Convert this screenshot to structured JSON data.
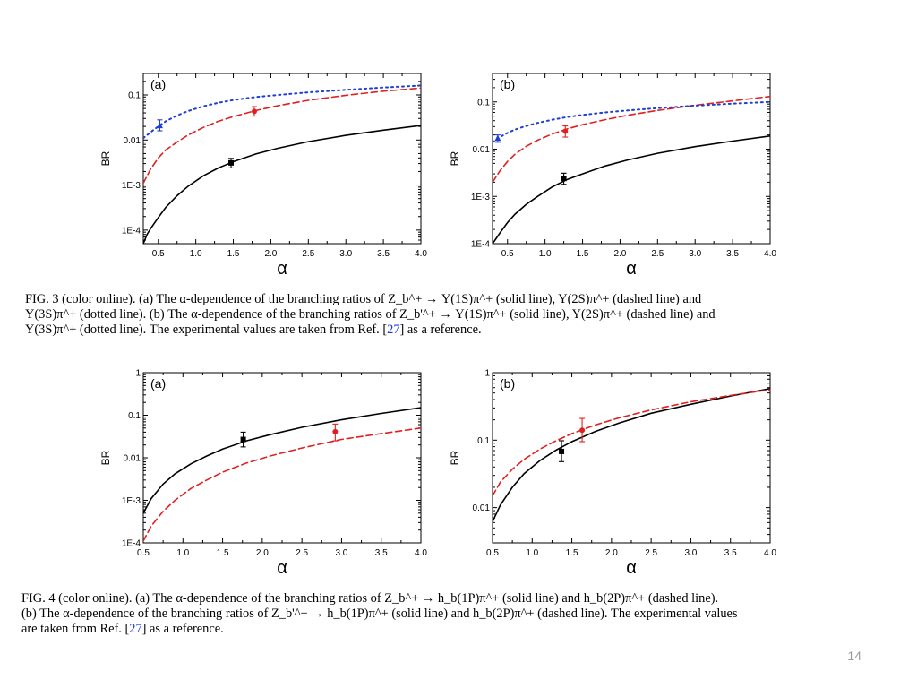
{
  "chart_data": [
    {
      "type": "line",
      "panel_label": "(a)",
      "xlabel": "α",
      "ylabel": "BR",
      "xlim": [
        0.3,
        4.0
      ],
      "ylim": [
        5e-05,
        0.3
      ],
      "yscale": "log",
      "x_ticks": [
        0.5,
        1.0,
        1.5,
        2.0,
        2.5,
        3.0,
        3.5,
        4.0
      ],
      "x_tick_labels": [
        "0.5",
        "1.0",
        "1.5",
        "2.0",
        "2.5",
        "3.0",
        "3.5",
        "4.0"
      ],
      "y_ticks": [
        0.0001,
        0.001,
        0.01,
        0.1
      ],
      "y_tick_labels": [
        "1E-4",
        "1E-3",
        "0.01",
        "0.1"
      ],
      "series": [
        {
          "style": "solid",
          "color": "#000000",
          "x": [
            0.3,
            0.35,
            0.4,
            0.5,
            0.6,
            0.75,
            0.9,
            1.1,
            1.3,
            1.5,
            1.8,
            2.1,
            2.5,
            3.0,
            3.5,
            4.0
          ],
          "y": [
            5e-05,
            8e-05,
            0.00011,
            0.00019,
            0.00032,
            0.00058,
            0.00095,
            0.0016,
            0.0024,
            0.0033,
            0.0049,
            0.0066,
            0.0092,
            0.0127,
            0.0165,
            0.021
          ]
        },
        {
          "style": "dashed",
          "color": "#e02020",
          "x": [
            0.3,
            0.4,
            0.5,
            0.6,
            0.75,
            0.9,
            1.1,
            1.3,
            1.5,
            1.8,
            2.1,
            2.5,
            3.0,
            3.5,
            4.0
          ],
          "y": [
            0.0011,
            0.0023,
            0.004,
            0.006,
            0.009,
            0.013,
            0.019,
            0.026,
            0.033,
            0.045,
            0.058,
            0.076,
            0.098,
            0.121,
            0.142
          ]
        },
        {
          "style": "dotted",
          "color": "#1f3fd0",
          "x": [
            0.3,
            0.4,
            0.5,
            0.6,
            0.75,
            0.9,
            1.1,
            1.3,
            1.5,
            1.8,
            2.1,
            2.5,
            3.0,
            3.5,
            4.0
          ],
          "y": [
            0.011,
            0.015,
            0.02,
            0.026,
            0.035,
            0.044,
            0.056,
            0.067,
            0.077,
            0.09,
            0.1,
            0.114,
            0.13,
            0.146,
            0.162
          ]
        }
      ],
      "points": [
        {
          "x": 0.52,
          "y": 0.021,
          "err_lo": 0.016,
          "err_hi": 0.028,
          "marker": "triangle",
          "color": "#1f3fd0"
        },
        {
          "x": 1.78,
          "y": 0.043,
          "err_lo": 0.034,
          "err_hi": 0.055,
          "marker": "circle",
          "color": "#e02020"
        },
        {
          "x": 1.47,
          "y": 0.0031,
          "err_lo": 0.0024,
          "err_hi": 0.0039,
          "marker": "square",
          "color": "#000000"
        }
      ]
    },
    {
      "type": "line",
      "panel_label": "(b)",
      "xlabel": "α",
      "ylabel": "BR",
      "xlim": [
        0.3,
        4.0
      ],
      "ylim": [
        0.0001,
        0.4
      ],
      "yscale": "log",
      "x_ticks": [
        0.5,
        1.0,
        1.5,
        2.0,
        2.5,
        3.0,
        3.5,
        4.0
      ],
      "x_tick_labels": [
        "0.5",
        "1.0",
        "1.5",
        "2.0",
        "2.5",
        "3.0",
        "3.5",
        "4.0"
      ],
      "y_ticks": [
        0.0001,
        0.001,
        0.01,
        0.1
      ],
      "y_tick_labels": [
        "1E-4",
        "1E-3",
        "0.01",
        "0.1"
      ],
      "series": [
        {
          "style": "solid",
          "color": "#000000",
          "x": [
            0.3,
            0.35,
            0.4,
            0.5,
            0.6,
            0.75,
            0.9,
            1.1,
            1.3,
            1.5,
            1.8,
            2.1,
            2.5,
            3.0,
            3.5,
            4.0
          ],
          "y": [
            0.0001,
            0.00013,
            0.00017,
            0.00028,
            0.00042,
            0.00068,
            0.001,
            0.0016,
            0.0023,
            0.003,
            0.0044,
            0.0059,
            0.0082,
            0.0113,
            0.0148,
            0.019
          ]
        },
        {
          "style": "dashed",
          "color": "#e02020",
          "x": [
            0.3,
            0.4,
            0.5,
            0.6,
            0.75,
            0.9,
            1.1,
            1.3,
            1.5,
            1.8,
            2.1,
            2.5,
            3.0,
            3.5,
            4.0
          ],
          "y": [
            0.002,
            0.0035,
            0.0055,
            0.0078,
            0.0115,
            0.0155,
            0.021,
            0.027,
            0.033,
            0.042,
            0.052,
            0.066,
            0.085,
            0.105,
            0.13
          ]
        },
        {
          "style": "dotted",
          "color": "#1f3fd0",
          "x": [
            0.3,
            0.4,
            0.5,
            0.6,
            0.75,
            0.9,
            1.1,
            1.3,
            1.5,
            1.8,
            2.1,
            2.5,
            3.0,
            3.5,
            4.0
          ],
          "y": [
            0.014,
            0.018,
            0.022,
            0.026,
            0.031,
            0.036,
            0.042,
            0.048,
            0.053,
            0.06,
            0.066,
            0.074,
            0.083,
            0.092,
            0.1
          ]
        }
      ],
      "points": [
        {
          "x": 0.37,
          "y": 0.017,
          "err_lo": 0.014,
          "err_hi": 0.02,
          "marker": "triangle",
          "color": "#1f3fd0"
        },
        {
          "x": 1.27,
          "y": 0.024,
          "err_lo": 0.018,
          "err_hi": 0.031,
          "marker": "circle",
          "color": "#e02020"
        },
        {
          "x": 1.25,
          "y": 0.0024,
          "err_lo": 0.0018,
          "err_hi": 0.0031,
          "marker": "square",
          "color": "#000000"
        }
      ]
    },
    {
      "type": "line",
      "panel_label": "(a)",
      "xlabel": "α",
      "ylabel": "BR",
      "xlim": [
        0.5,
        4.0
      ],
      "ylim": [
        0.0001,
        1
      ],
      "yscale": "log",
      "x_ticks": [
        0.5,
        1.0,
        1.5,
        2.0,
        2.5,
        3.0,
        3.5,
        4.0
      ],
      "x_tick_labels": [
        "0.5",
        "1.0",
        "1.5",
        "2.0",
        "2.5",
        "3.0",
        "3.5",
        "4.0"
      ],
      "y_ticks": [
        0.0001,
        0.001,
        0.01,
        0.1,
        1
      ],
      "y_tick_labels": [
        "1E-4",
        "1E-3",
        "0.01",
        "0.1",
        "1"
      ],
      "series": [
        {
          "style": "solid",
          "color": "#000000",
          "x": [
            0.5,
            0.6,
            0.75,
            0.9,
            1.1,
            1.3,
            1.5,
            1.8,
            2.1,
            2.5,
            3.0,
            3.5,
            4.0
          ],
          "y": [
            0.0005,
            0.0011,
            0.0024,
            0.0042,
            0.0072,
            0.011,
            0.016,
            0.025,
            0.035,
            0.052,
            0.078,
            0.11,
            0.15
          ]
        },
        {
          "style": "dashed",
          "color": "#e02020",
          "x": [
            0.5,
            0.6,
            0.75,
            0.9,
            1.1,
            1.3,
            1.5,
            1.8,
            2.1,
            2.5,
            3.0,
            3.5,
            4.0
          ],
          "y": [
            0.00011,
            0.00025,
            0.00055,
            0.001,
            0.0019,
            0.003,
            0.0046,
            0.0075,
            0.011,
            0.017,
            0.027,
            0.037,
            0.05
          ]
        }
      ],
      "points": [
        {
          "x": 1.76,
          "y": 0.027,
          "err_lo": 0.018,
          "err_hi": 0.04,
          "marker": "square",
          "color": "#000000"
        },
        {
          "x": 2.92,
          "y": 0.041,
          "err_lo": 0.025,
          "err_hi": 0.062,
          "marker": "circle",
          "color": "#e02020"
        }
      ]
    },
    {
      "type": "line",
      "panel_label": "(b)",
      "xlabel": "α",
      "ylabel": "BR",
      "xlim": [
        0.5,
        4.0
      ],
      "ylim": [
        0.003,
        1
      ],
      "yscale": "log",
      "x_ticks": [
        0.5,
        1.0,
        1.5,
        2.0,
        2.5,
        3.0,
        3.5,
        4.0
      ],
      "x_tick_labels": [
        "0.5",
        "1.0",
        "1.5",
        "2.0",
        "2.5",
        "3.0",
        "3.5",
        "4.0"
      ],
      "y_ticks": [
        0.01,
        0.1,
        1
      ],
      "y_tick_labels": [
        "0.01",
        "0.1",
        "1"
      ],
      "series": [
        {
          "style": "solid",
          "color": "#000000",
          "x": [
            0.5,
            0.6,
            0.75,
            0.9,
            1.1,
            1.3,
            1.5,
            1.8,
            2.1,
            2.5,
            3.0,
            3.5,
            4.0
          ],
          "y": [
            0.0062,
            0.011,
            0.02,
            0.032,
            0.05,
            0.071,
            0.095,
            0.135,
            0.18,
            0.25,
            0.34,
            0.45,
            0.58
          ]
        },
        {
          "style": "dashed",
          "color": "#e02020",
          "x": [
            0.5,
            0.6,
            0.75,
            0.9,
            1.1,
            1.3,
            1.5,
            1.8,
            2.1,
            2.5,
            3.0,
            3.5,
            4.0
          ],
          "y": [
            0.015,
            0.024,
            0.037,
            0.052,
            0.074,
            0.098,
            0.125,
            0.168,
            0.215,
            0.28,
            0.37,
            0.46,
            0.56
          ]
        }
      ],
      "points": [
        {
          "x": 1.37,
          "y": 0.068,
          "err_lo": 0.048,
          "err_hi": 0.098,
          "marker": "square",
          "color": "#000000"
        },
        {
          "x": 1.63,
          "y": 0.14,
          "err_lo": 0.095,
          "err_hi": 0.21,
          "marker": "circle",
          "color": "#e02020"
        }
      ]
    }
  ],
  "captions": {
    "fig3": {
      "line1": "FIG. 3 (color online).    (a) The α-dependence of the branching ratios of Z_b^+ → Υ(1S)π^+ (solid line), Υ(2S)π^+ (dashed line) and",
      "line2": "Υ(3S)π^+ (dotted line). (b) The α-dependence of the branching ratios of Z_b'^+ → Υ(1S)π^+ (solid line), Υ(2S)π^+ (dashed line) and",
      "line3_before_ref": "Υ(3S)π^+ (dotted line). The experimental values are taken from Ref. [",
      "ref": "27",
      "line3_after_ref": "] as a reference."
    },
    "fig4": {
      "line1": "FIG. 4 (color online).    (a) The α-dependence of the branching ratios of Z_b^+ → h_b(1P)π^+ (solid line) and h_b(2P)π^+ (dashed line).",
      "line2": "(b) The α-dependence of the branching ratios of Z_b'^+ → h_b(1P)π^+ (solid line) and h_b(2P)π^+ (dashed line). The experimental values",
      "line3_before_ref": "are taken from Ref. [",
      "ref": "27",
      "line3_after_ref": "] as a reference."
    }
  },
  "page_number": "14"
}
